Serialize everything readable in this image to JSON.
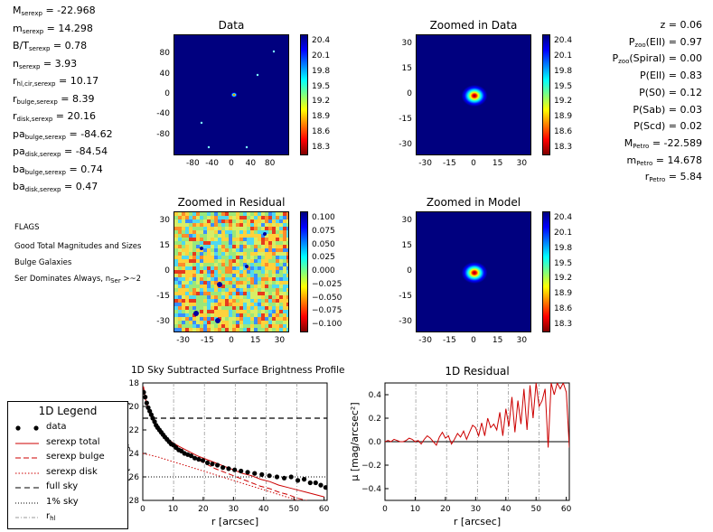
{
  "stats_left": [
    {
      "base": "M",
      "sub": "serexp",
      "value": " = -22.968"
    },
    {
      "base": "m",
      "sub": "serexp",
      "value": " = 14.298"
    },
    {
      "base": "B/T",
      "sub": "serexp",
      "value": " = 0.78"
    },
    {
      "base": "n",
      "sub": "serexp",
      "value": " = 3.93"
    },
    {
      "base": "r",
      "sub": "hl,cir,serexp",
      "value": " = 10.17"
    },
    {
      "base": "r",
      "sub": "bulge,serexp",
      "value": " = 8.39"
    },
    {
      "base": "r",
      "sub": "disk,serexp",
      "value": " = 20.16"
    },
    {
      "base": "pa",
      "sub": "bulge,serexp",
      "value": " = -84.62"
    },
    {
      "base": "pa",
      "sub": "disk,serexp",
      "value": " = -84.54"
    },
    {
      "base": "ba",
      "sub": "bulge,serexp",
      "value": " = 0.74"
    },
    {
      "base": "ba",
      "sub": "disk,serexp",
      "value": " = 0.47"
    }
  ],
  "flags": {
    "title": "FLAGS",
    "items": [
      "Good Total Magnitudes and Sizes",
      "Bulge Galaxies",
      "Ser Dominates Always, n"
    ],
    "item3_sub": "Ser",
    "item3_tail": " >~2"
  },
  "stats_right": [
    {
      "base": "z = 0.06",
      "sub": "",
      "value": ""
    },
    {
      "base": "P",
      "sub": "zoo",
      "value": "(Ell) = 0.97"
    },
    {
      "base": "P",
      "sub": "zoo",
      "value": "(Spiral) = 0.00"
    },
    {
      "base": "P(Ell) = 0.83",
      "sub": "",
      "value": ""
    },
    {
      "base": "P(S0) = 0.12",
      "sub": "",
      "value": ""
    },
    {
      "base": "P(Sab) = 0.03",
      "sub": "",
      "value": ""
    },
    {
      "base": "P(Scd) = 0.02",
      "sub": "",
      "value": ""
    },
    {
      "base": "M",
      "sub": "Petro",
      "value": " = -22.589"
    },
    {
      "base": "m",
      "sub": "Petro",
      "value": " = 14.678"
    },
    {
      "base": "r",
      "sub": "Petro",
      "value": " = 5.84"
    }
  ],
  "colors": {
    "data": "#000000",
    "model": "#cc0000",
    "grid": "#999999"
  },
  "chart_data": [
    {
      "type": "heatmap",
      "title": "Data",
      "xticks": [
        -80,
        -40,
        0,
        40,
        80
      ],
      "yticks": [
        80,
        40,
        0,
        -40,
        -80
      ],
      "xlim": [
        -120,
        120
      ],
      "ylim": [
        -120,
        120
      ],
      "colorbar": {
        "ticks": [
          "20.4",
          "20.1",
          "19.8",
          "19.5",
          "19.2",
          "18.9",
          "18.6",
          "18.3"
        ]
      }
    },
    {
      "type": "heatmap",
      "title": "Zoomed in Data",
      "xticks": [
        -30,
        -15,
        0,
        15,
        30
      ],
      "yticks": [
        30,
        15,
        0,
        -15,
        -30
      ],
      "xlim": [
        -36,
        36
      ],
      "ylim": [
        -36,
        36
      ],
      "colorbar": {
        "ticks": [
          "20.4",
          "20.1",
          "19.8",
          "19.5",
          "19.2",
          "18.9",
          "18.6",
          "18.3"
        ]
      }
    },
    {
      "type": "heatmap",
      "title": "Zoomed in Residual",
      "xticks": [
        -30,
        -15,
        0,
        15,
        30
      ],
      "yticks": [
        30,
        15,
        0,
        -15,
        -30
      ],
      "xlim": [
        -36,
        36
      ],
      "ylim": [
        -36,
        36
      ],
      "colorbar": {
        "ticks": [
          "0.100",
          "0.075",
          "0.050",
          "0.025",
          "0.000",
          "−0.025",
          "−0.050",
          "−0.075",
          "−0.100"
        ]
      }
    },
    {
      "type": "heatmap",
      "title": "Zoomed in Model",
      "xticks": [
        -30,
        -15,
        0,
        15,
        30
      ],
      "yticks": [
        30,
        15,
        0,
        -15,
        -30
      ],
      "xlim": [
        -36,
        36
      ],
      "ylim": [
        -36,
        36
      ],
      "colorbar": {
        "ticks": [
          "20.4",
          "20.1",
          "19.8",
          "19.5",
          "19.2",
          "18.9",
          "18.6",
          "18.3"
        ]
      }
    },
    {
      "type": "line",
      "title": "1D Sky Subtracted Surface Brightness Profile",
      "xlabel": "r [arcsec]",
      "ylabel": "μ [mag/arcsec²]",
      "xlim": [
        0,
        61
      ],
      "ylim": [
        28,
        18
      ],
      "xticks": [
        0,
        10,
        20,
        30,
        40,
        50,
        60
      ],
      "yticks": [
        18,
        20,
        22,
        24,
        26,
        28
      ],
      "rhl_lines": [
        10.2,
        20.4,
        30.6,
        40.8,
        51.0
      ],
      "full_sky": 21.0,
      "one_percent_sky": 26.0,
      "series": [
        {
          "name": "data",
          "x": [
            0.3,
            0.8,
            1.3,
            1.8,
            2.3,
            2.8,
            3.3,
            3.9,
            4.4,
            4.9,
            5.5,
            6.1,
            6.7,
            7.3,
            8.0,
            8.7,
            9.4,
            10.2,
            11.0,
            11.9,
            12.8,
            13.8,
            14.9,
            16.0,
            17.2,
            18.5,
            19.9,
            21.4,
            23.0,
            24.7,
            26.5,
            28.4,
            30.4,
            32.5,
            34.7,
            37.0,
            39.4,
            41.9,
            44.4,
            46.8,
            49.1,
            51.3,
            53.4,
            55.4,
            57.2,
            58.9,
            60.5
          ],
          "y": [
            18.8,
            19.2,
            19.7,
            20.1,
            20.4,
            20.7,
            21.0,
            21.3,
            21.6,
            21.8,
            22.0,
            22.2,
            22.4,
            22.6,
            22.8,
            23.0,
            23.2,
            23.3,
            23.5,
            23.7,
            23.8,
            24.0,
            24.1,
            24.2,
            24.4,
            24.5,
            24.6,
            24.8,
            24.9,
            25.0,
            25.2,
            25.3,
            25.4,
            25.5,
            25.6,
            25.7,
            25.8,
            25.9,
            26.0,
            26.1,
            26.0,
            26.3,
            26.2,
            26.5,
            26.5,
            26.7,
            26.9
          ]
        },
        {
          "name": "serexp total",
          "x": [
            0.2,
            1,
            2,
            3,
            4,
            5,
            6,
            8,
            10,
            12,
            15,
            18,
            21,
            24,
            27,
            30,
            33,
            36,
            39,
            42,
            45,
            48,
            51,
            54,
            57,
            60
          ],
          "y": [
            18.3,
            19.5,
            20.4,
            21.0,
            21.5,
            21.9,
            22.2,
            22.7,
            23.1,
            23.4,
            23.8,
            24.2,
            24.5,
            24.8,
            25.1,
            25.4,
            25.7,
            25.9,
            26.2,
            26.4,
            26.7,
            26.9,
            27.1,
            27.3,
            27.5,
            27.7
          ]
        },
        {
          "name": "serexp bulge",
          "x": [
            0.2,
            1,
            2,
            3,
            4,
            5,
            6,
            8,
            10,
            12,
            15,
            18,
            21,
            24,
            27,
            30,
            33,
            36,
            39,
            42,
            45,
            48,
            51,
            54,
            57,
            60
          ],
          "y": [
            18.3,
            19.5,
            20.4,
            21.0,
            21.5,
            21.9,
            22.2,
            22.8,
            23.2,
            23.6,
            24.1,
            24.5,
            24.9,
            25.3,
            25.6,
            25.9,
            26.2,
            26.5,
            26.8,
            27.0,
            27.3,
            27.5,
            27.8,
            28.0,
            28.2,
            28.4
          ]
        },
        {
          "name": "serexp disk",
          "x": [
            0,
            5,
            10,
            15,
            20,
            25,
            30,
            35,
            40,
            45,
            50,
            55,
            60
          ],
          "y": [
            24.0,
            24.3,
            24.7,
            25.1,
            25.5,
            25.9,
            26.3,
            26.7,
            27.1,
            27.5,
            27.9,
            28.3,
            28.7
          ]
        }
      ]
    },
    {
      "type": "line",
      "title": "1D Residual",
      "xlabel": "r [arcsec]",
      "ylabel": "μ [mag/arcsec²]",
      "xlim": [
        0,
        61
      ],
      "ylim": [
        -0.5,
        0.5
      ],
      "xticks": [
        0,
        10,
        20,
        30,
        40,
        50,
        60
      ],
      "yticks": [
        0.4,
        0.2,
        0.0,
        -0.2,
        -0.4
      ],
      "ytick_labels": [
        "0.4",
        "0.2",
        "0.0",
        "−0.2",
        "−0.4"
      ],
      "rhl_lines": [
        10.2,
        20.4,
        30.6,
        40.8,
        51.0
      ],
      "series": [
        {
          "name": "residual",
          "x": [
            0,
            1,
            2,
            3,
            4,
            5,
            6,
            7,
            8,
            9,
            10,
            11,
            12,
            13,
            14,
            15,
            16,
            17,
            18,
            19,
            20,
            21,
            22,
            23,
            24,
            25,
            26,
            27,
            28,
            29,
            30,
            31,
            32,
            33,
            34,
            35,
            36,
            37,
            38,
            39,
            40,
            41,
            42,
            43,
            44,
            45,
            46,
            47,
            48,
            49,
            50,
            51,
            52,
            53,
            54,
            55,
            56,
            57,
            58,
            59,
            60,
            61
          ],
          "y": [
            0.0,
            0.01,
            0.0,
            0.02,
            0.01,
            0.0,
            0.0,
            0.01,
            0.03,
            0.02,
            0.0,
            0.01,
            -0.02,
            0.02,
            0.05,
            0.03,
            0.0,
            -0.03,
            0.04,
            0.08,
            0.03,
            0.05,
            -0.02,
            0.02,
            0.07,
            0.04,
            0.09,
            0.02,
            0.08,
            0.14,
            0.12,
            0.05,
            0.16,
            0.05,
            0.2,
            0.12,
            0.15,
            0.1,
            0.25,
            0.05,
            0.28,
            0.13,
            0.38,
            0.08,
            0.35,
            0.15,
            0.45,
            0.1,
            0.48,
            0.2,
            0.5,
            0.3,
            0.35,
            0.45,
            -0.05,
            0.5,
            0.4,
            0.5,
            0.45,
            0.5,
            0.42,
            -0.05
          ]
        }
      ]
    }
  ],
  "legend": {
    "title": "1D Legend",
    "items": [
      "data",
      "serexp total",
      "serexp bulge",
      "serexp disk",
      "full sky",
      "1% sky",
      "r"
    ],
    "r_sub": "hl"
  }
}
